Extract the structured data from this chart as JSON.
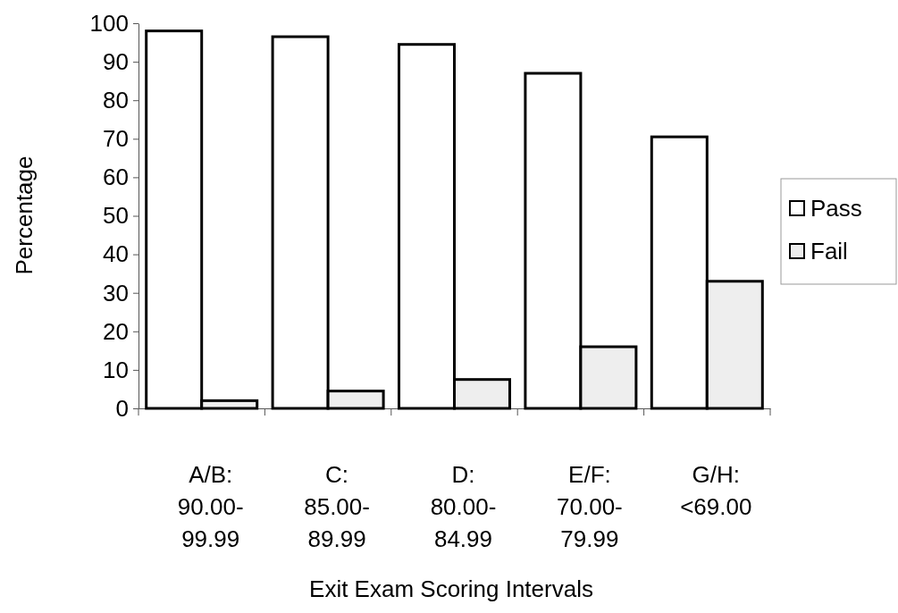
{
  "chart_data": {
    "type": "bar",
    "xlabel": "Exit Exam Scoring Intervals",
    "ylabel": "Percentage",
    "categories": [
      "A/B: 90.00-99.99",
      "C: 85.00-89.99",
      "D: 80.00-84.99",
      "E/F: 70.00-79.99",
      "G/H: <69.00"
    ],
    "series": [
      {
        "name": "Pass",
        "color": "#ffffff",
        "values": [
          98,
          96.5,
          94.5,
          87,
          70.5
        ]
      },
      {
        "name": "Fail",
        "color": "#eeeeee",
        "values": [
          2,
          4.5,
          7.5,
          16,
          33
        ]
      }
    ],
    "ylim": [
      0,
      100
    ],
    "yticks": [
      0,
      10,
      20,
      30,
      40,
      50,
      60,
      70,
      80,
      90,
      100
    ],
    "grid": false,
    "legend": "right"
  }
}
